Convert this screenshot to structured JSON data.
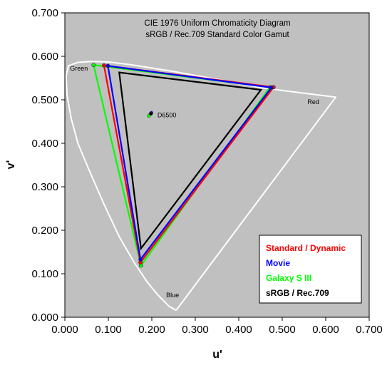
{
  "chart_data": {
    "type": "scatter",
    "title": "CIE 1976 Uniform Chromaticity Diagram",
    "subtitle": "sRGB / Rec.709 Standard Color Gamut",
    "xlabel": "u'",
    "ylabel": "v'",
    "xlim": [
      0.0,
      0.7
    ],
    "ylim": [
      0.0,
      0.7
    ],
    "x_ticks": [
      "0.000",
      "0.100",
      "0.200",
      "0.300",
      "0.400",
      "0.500",
      "0.600",
      "0.700"
    ],
    "y_ticks": [
      "0.000",
      "0.100",
      "0.200",
      "0.300",
      "0.400",
      "0.500",
      "0.600",
      "0.700"
    ],
    "grid": false,
    "plot_background": "#c0c0c0",
    "legend_placement": "bottom-right",
    "region_labels": [
      {
        "text": "Green",
        "u": 0.012,
        "v": 0.567
      },
      {
        "text": "Red",
        "u": 0.558,
        "v": 0.49
      },
      {
        "text": "Blue",
        "u": 0.233,
        "v": 0.046
      },
      {
        "text": "D6500",
        "u": 0.213,
        "v": 0.46
      }
    ],
    "locus": {
      "color": "#ffffff",
      "points": [
        [
          0.256,
          0.016
        ],
        [
          0.24,
          0.025
        ],
        [
          0.215,
          0.05
        ],
        [
          0.19,
          0.08
        ],
        [
          0.16,
          0.125
        ],
        [
          0.125,
          0.185
        ],
        [
          0.09,
          0.26
        ],
        [
          0.055,
          0.34
        ],
        [
          0.03,
          0.4
        ],
        [
          0.015,
          0.455
        ],
        [
          0.005,
          0.51
        ],
        [
          0.003,
          0.555
        ],
        [
          0.008,
          0.578
        ],
        [
          0.03,
          0.586
        ],
        [
          0.06,
          0.588
        ],
        [
          0.1,
          0.587
        ],
        [
          0.15,
          0.581
        ],
        [
          0.25,
          0.565
        ],
        [
          0.35,
          0.547
        ],
        [
          0.45,
          0.528
        ],
        [
          0.55,
          0.515
        ],
        [
          0.623,
          0.506
        ],
        [
          0.256,
          0.016
        ]
      ]
    },
    "series": [
      {
        "name": "Standard / Dynamic",
        "color": "#ff0000",
        "points": [
          [
            0.48,
            0.529
          ],
          [
            0.09,
            0.579
          ],
          [
            0.174,
            0.126
          ]
        ],
        "white_point": [
          0.197,
          0.468
        ]
      },
      {
        "name": "Movie",
        "color": "#0000ff",
        "points": [
          [
            0.475,
            0.528
          ],
          [
            0.099,
            0.578
          ],
          [
            0.174,
            0.133
          ]
        ],
        "white_point": [
          0.199,
          0.47
        ]
      },
      {
        "name": "Galaxy S III",
        "color": "#00ff00",
        "points": [
          [
            0.472,
            0.529
          ],
          [
            0.066,
            0.58
          ],
          [
            0.175,
            0.119
          ]
        ],
        "white_point": [
          0.193,
          0.463
        ]
      },
      {
        "name": "sRGB / Rec.709",
        "color": "#000000",
        "points": [
          [
            0.451,
            0.523
          ],
          [
            0.125,
            0.563
          ],
          [
            0.175,
            0.158
          ]
        ],
        "white_point": [
          0.198,
          0.468
        ]
      }
    ]
  }
}
